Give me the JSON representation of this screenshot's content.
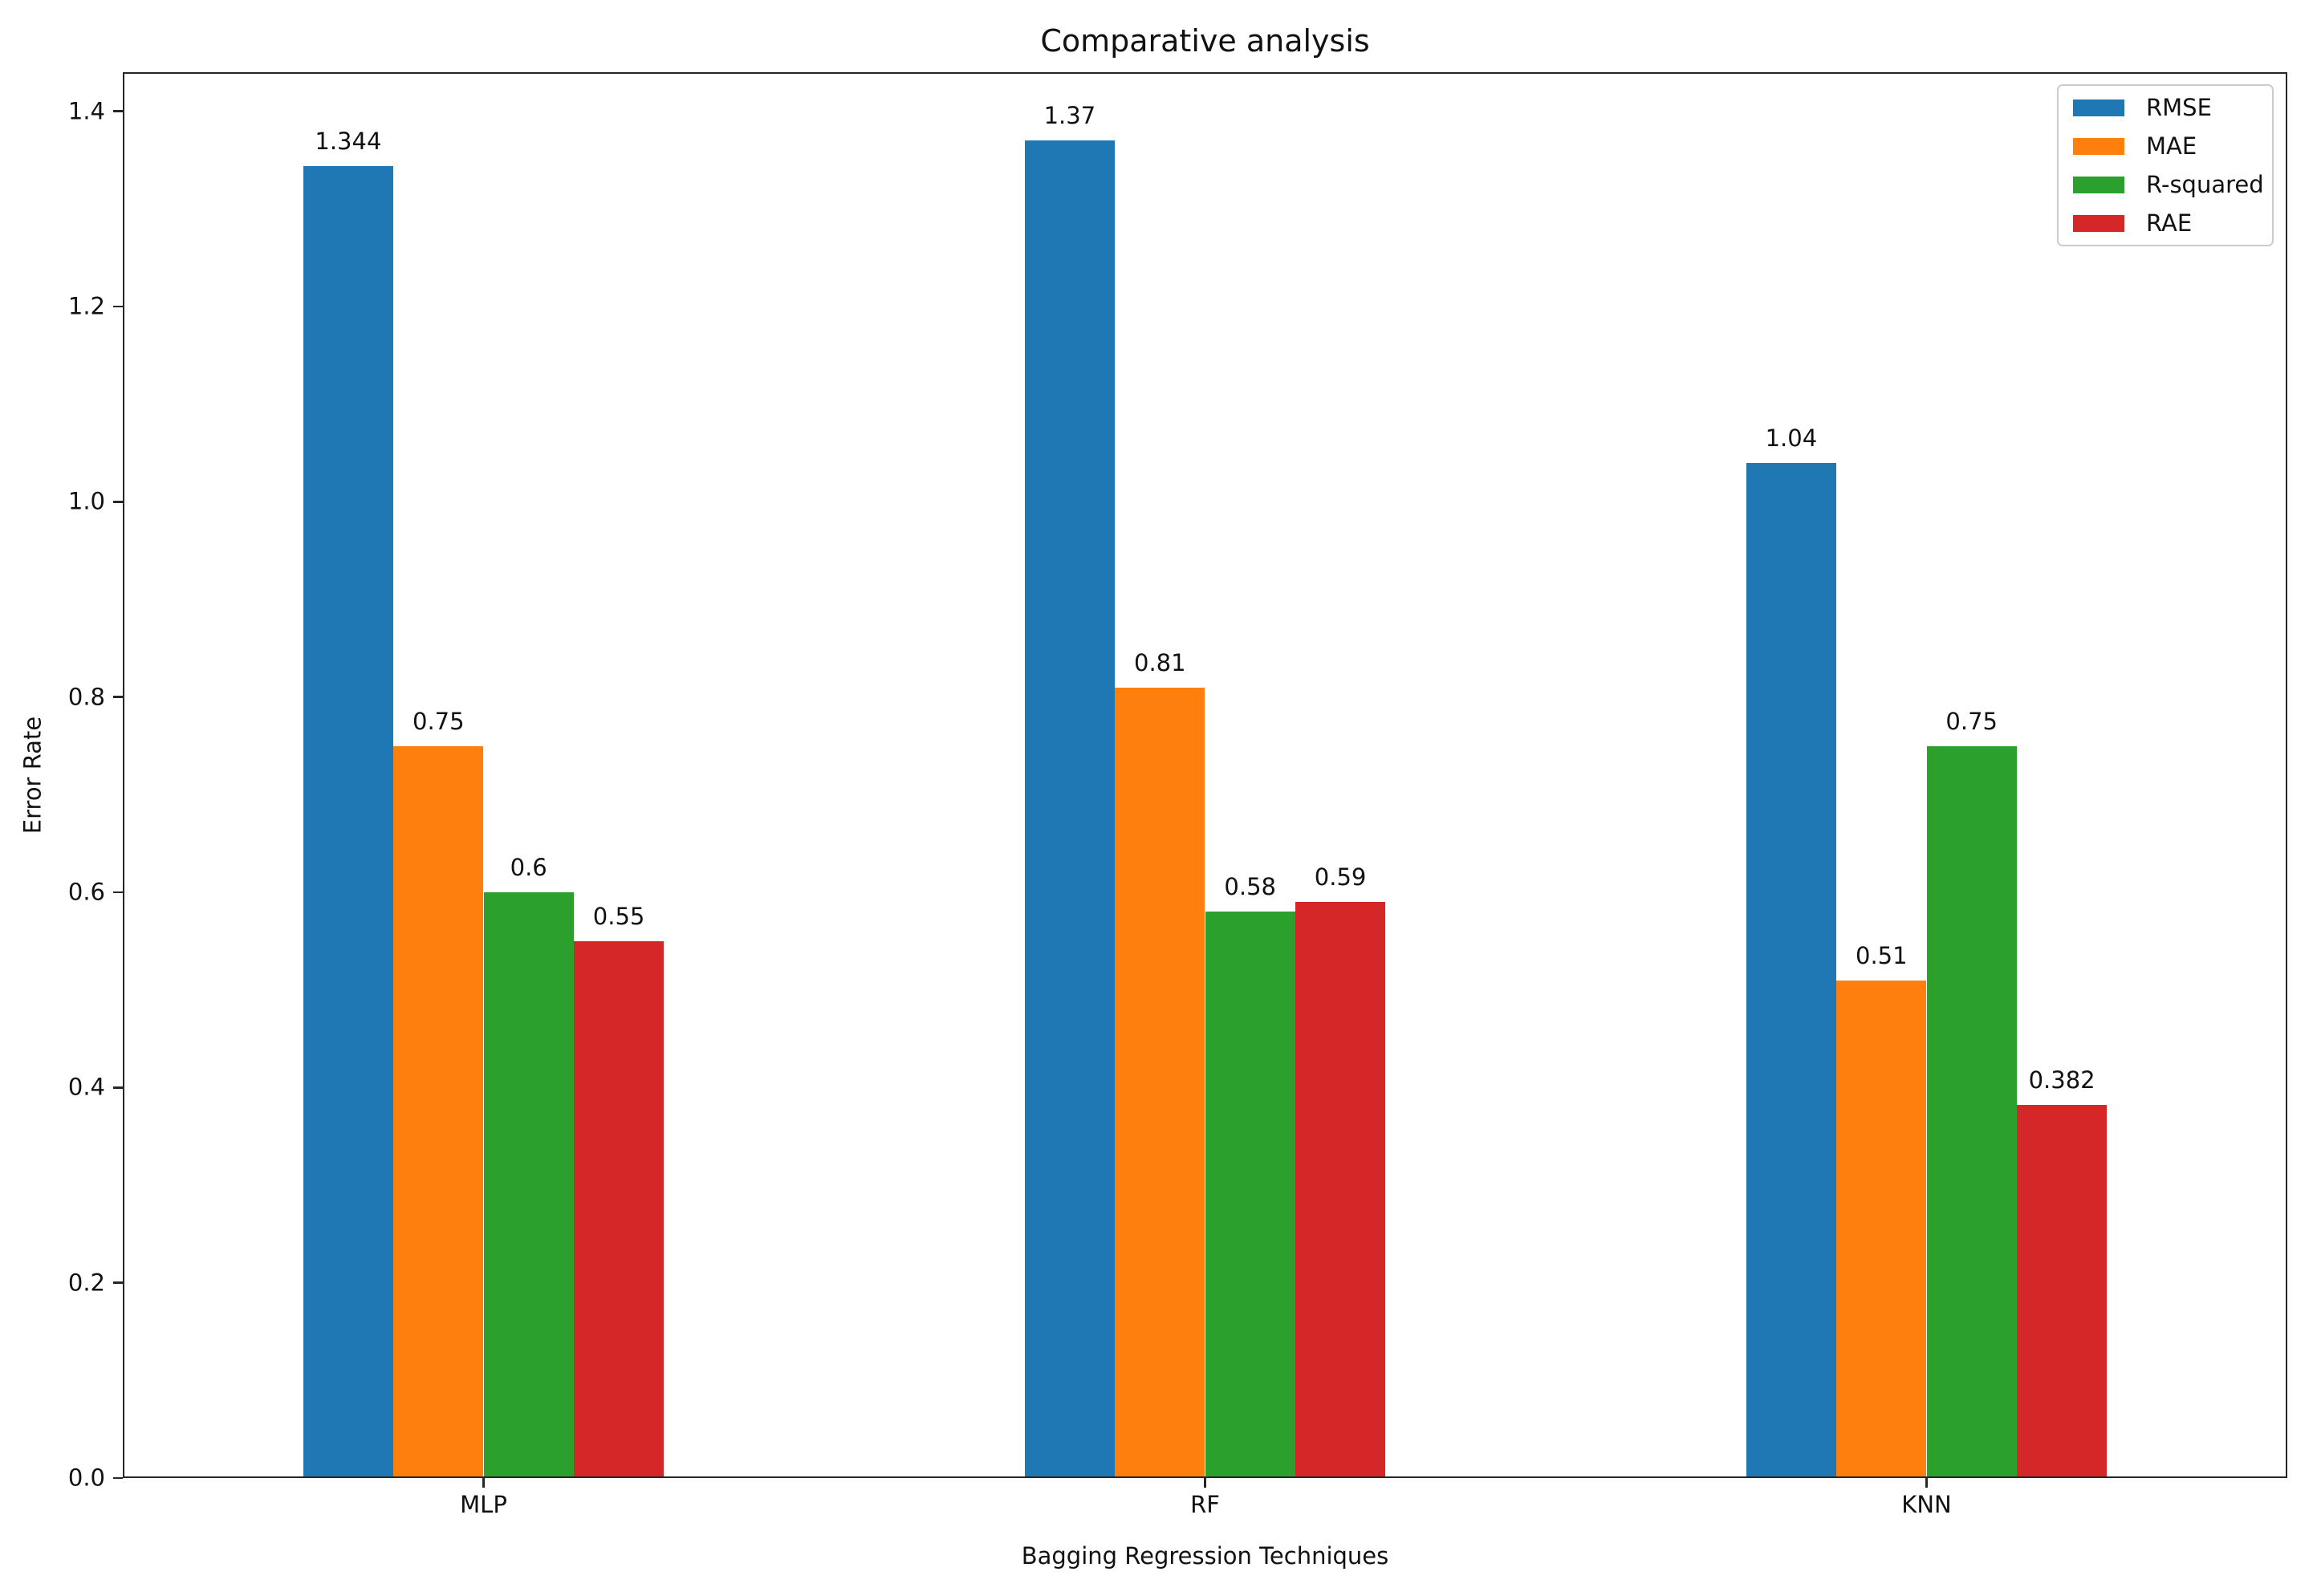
{
  "chart_data": {
    "type": "bar",
    "title": "Comparative analysis",
    "xlabel": "Bagging Regression Techniques",
    "ylabel": "Error Rate",
    "categories": [
      "MLP",
      "RF",
      "KNN"
    ],
    "series": [
      {
        "name": "RMSE",
        "color": "#1f77b4",
        "values": [
          1.344,
          1.37,
          1.04
        ]
      },
      {
        "name": "MAE",
        "color": "#ff7f0e",
        "values": [
          0.75,
          0.81,
          0.51
        ]
      },
      {
        "name": "R-squared",
        "color": "#2ca02c",
        "values": [
          0.6,
          0.58,
          0.75
        ]
      },
      {
        "name": "RAE",
        "color": "#d62728",
        "values": [
          0.55,
          0.59,
          0.382
        ]
      }
    ],
    "ylim": [
      0,
      1.44
    ],
    "yticks": [
      "0.0",
      "0.2",
      "0.4",
      "0.6",
      "0.8",
      "1.0",
      "1.2",
      "1.4"
    ],
    "bar_width_units": 0.125,
    "legend_position": "upper right",
    "grid": false,
    "spine_color": "#262626",
    "background_color": "#ffffff"
  }
}
